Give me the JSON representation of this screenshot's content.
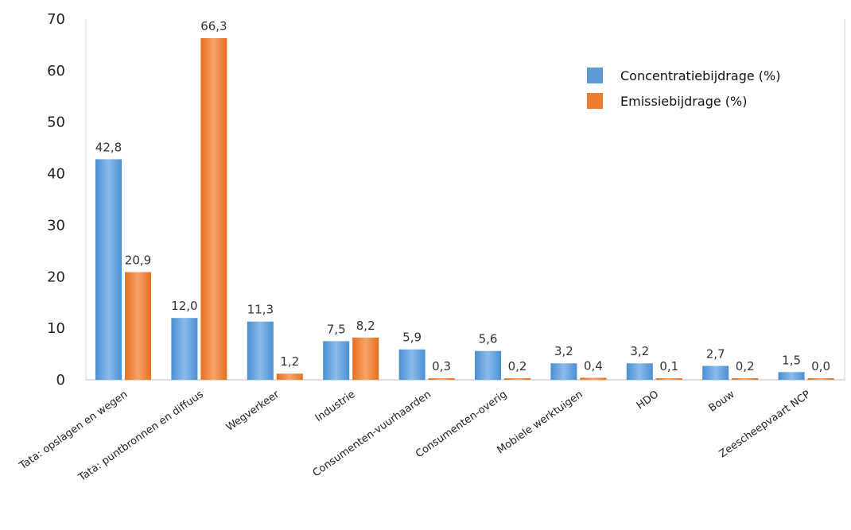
{
  "chart_data": {
    "type": "bar",
    "categories": [
      "Tata: opslagen en wegen",
      "Tata: puntbronnen en diffuus",
      "Wegverkeer",
      "Industrie",
      "Consumenten-vuurhaarden",
      "Consumenten-overig",
      "Mobiele werktuigen",
      "HDO",
      "Bouw",
      "Zeescheepvaart NCP"
    ],
    "series": [
      {
        "name": "Concentratiebijdrage (%)",
        "color": "#5b9bd5",
        "values": [
          42.8,
          12.0,
          11.3,
          7.5,
          5.9,
          5.6,
          3.2,
          3.2,
          2.7,
          1.5
        ],
        "labels": [
          "42,8",
          "12,0",
          "11,3",
          "7,5",
          "5,9",
          "5,6",
          "3,2",
          "3,2",
          "2,7",
          "1,5"
        ]
      },
      {
        "name": "Emissiebijdrage (%)",
        "color": "#ed7d31",
        "values": [
          20.9,
          66.3,
          1.2,
          8.2,
          0.3,
          0.2,
          0.4,
          0.1,
          0.2,
          0.0
        ],
        "labels": [
          "20,9",
          "66,3",
          "1,2",
          "8,2",
          "0,3",
          "0,2",
          "0,4",
          "0,1",
          "0,2",
          "0,0"
        ]
      }
    ],
    "ylim": [
      0,
      70
    ],
    "yticks": [
      "0",
      "10",
      "20",
      "30",
      "40",
      "50",
      "60",
      "70"
    ],
    "grid": false,
    "legend": "top-right",
    "title": "",
    "xlabel": "",
    "ylabel": ""
  }
}
